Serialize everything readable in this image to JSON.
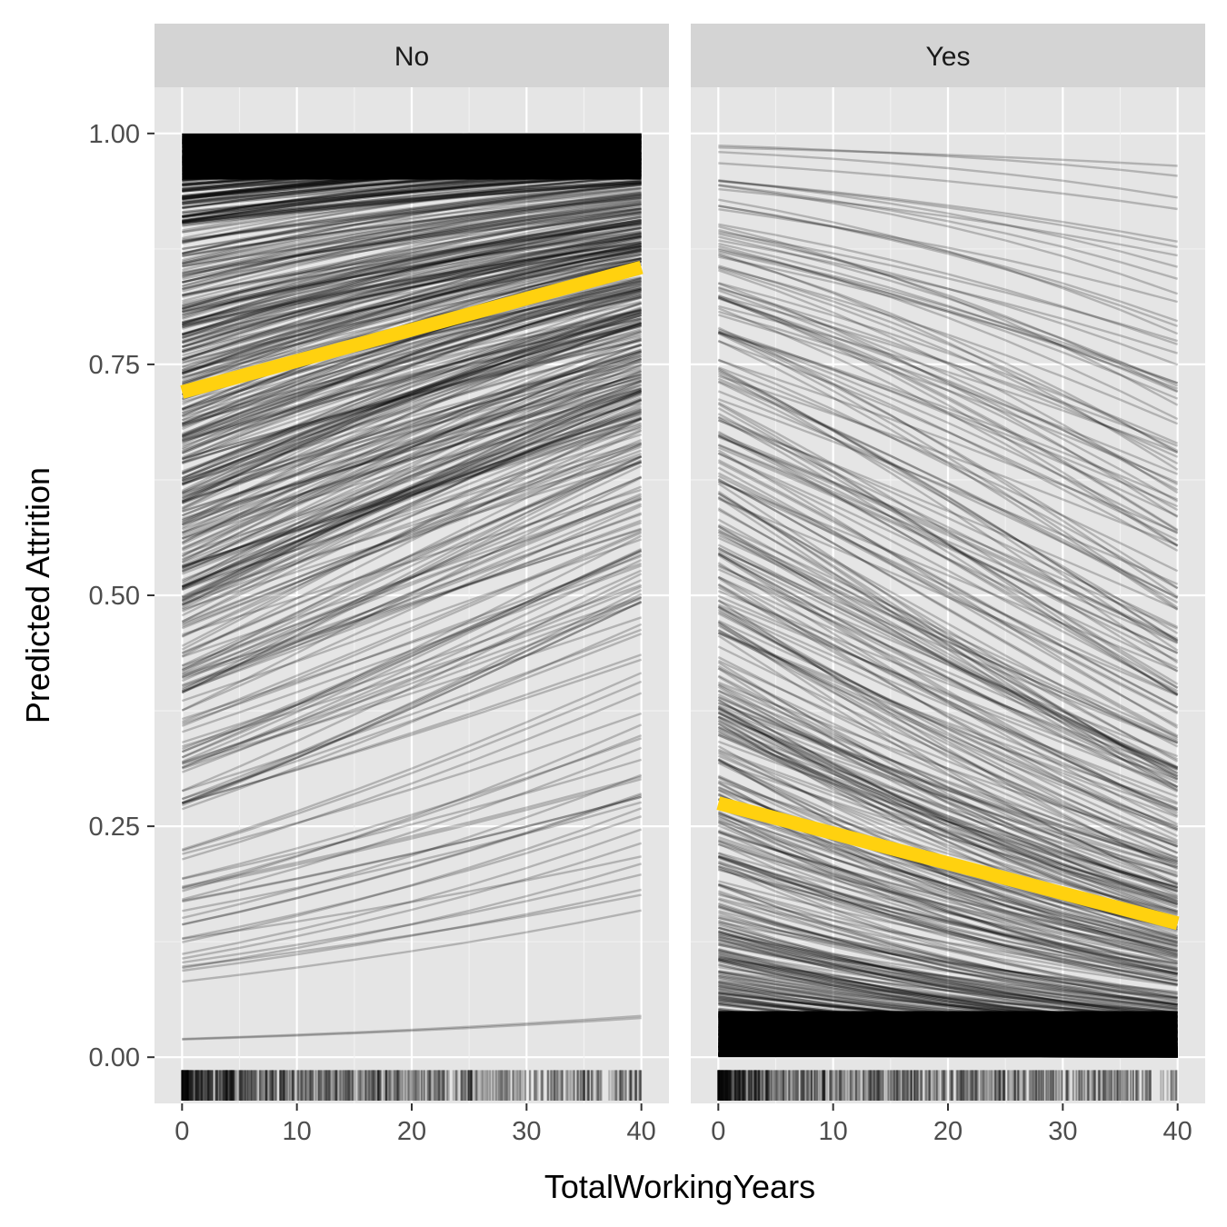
{
  "chart_data": {
    "type": "line",
    "xlabel": "TotalWorkingYears",
    "ylabel": "Predicted Attrition",
    "xlim": [
      -2.4,
      42.4
    ],
    "ylim": [
      -0.05,
      1.05
    ],
    "x_ticks": [
      0,
      10,
      20,
      30,
      40
    ],
    "x_tick_labels": [
      "0",
      "10",
      "20",
      "30",
      "40"
    ],
    "y_ticks": [
      0,
      0.25,
      0.5,
      0.75,
      1.0
    ],
    "y_tick_labels": [
      "0.00",
      "0.25",
      "0.50",
      "0.75",
      "1.00"
    ],
    "grid": true,
    "background": "#e5e5e5",
    "strip_color": "#d4d4d4",
    "line_color": "#000000",
    "average_line_color": "#ffd10f",
    "panels": [
      {
        "label": "No",
        "average_line": {
          "x": [
            0,
            40
          ],
          "y": [
            0.72,
            0.855
          ]
        },
        "rug_description": "dense rug of observed TotalWorkingYears, heaviest from 0 to 20",
        "ice_curve_start_range": [
          0.01,
          1.0
        ],
        "ice_curve_direction": "increasing"
      },
      {
        "label": "Yes",
        "average_line": {
          "x": [
            0,
            40
          ],
          "y": [
            0.275,
            0.145
          ]
        },
        "rug_description": "dense rug of observed TotalWorkingYears, heaviest from 0 to 20",
        "ice_curve_start_range": [
          0.0,
          0.99
        ],
        "ice_curve_direction": "decreasing"
      }
    ]
  }
}
